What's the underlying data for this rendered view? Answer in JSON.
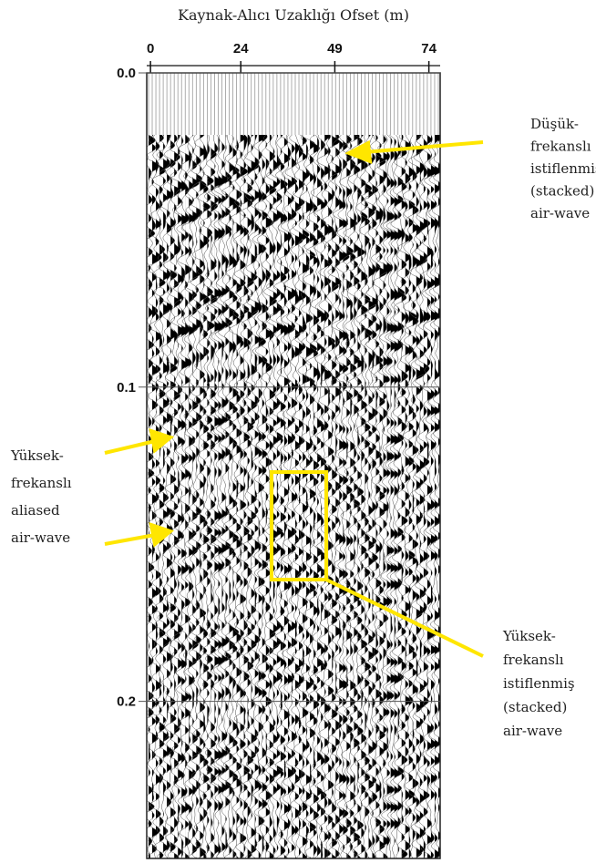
{
  "chart_data": {
    "type": "wiggle",
    "title": "Kaynak-Alıcı  Uzaklığı Ofset (m)",
    "xlim": [
      -1,
      77
    ],
    "xticks": [
      0,
      24,
      49,
      74
    ],
    "ylim": [
      0,
      0.25
    ],
    "yticks": [
      {
        "value": 0,
        "label": "0.0"
      },
      0.1,
      0.2
    ],
    "annotations": [
      {
        "lines": [
          "Düşük-",
          "frekanslı",
          "istiflenmiş",
          "(stacked)",
          "air-wave"
        ]
      },
      {
        "lines": [
          "Yüksek-",
          "frekanslı",
          "aliased",
          "air-wave"
        ]
      },
      {
        "lines": [
          "Yüksek-",
          "frekanslı",
          "istiflenmiş",
          "(stacked)",
          "air-wave"
        ]
      }
    ]
  }
}
